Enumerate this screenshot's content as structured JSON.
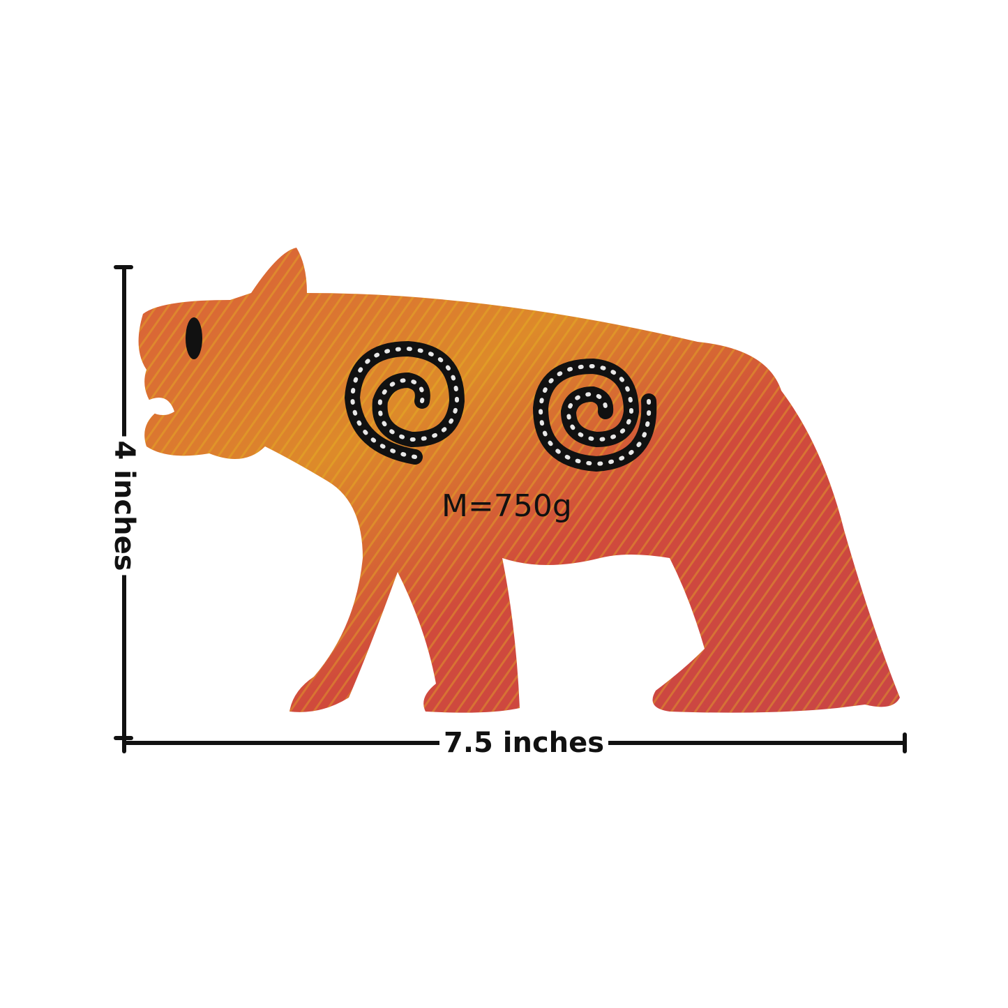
{
  "annotations": {
    "height_label": "4 inches",
    "width_label": "7.5 inches",
    "mass_label": "M=750g"
  },
  "subject": {
    "description_icon": "carved-soapstone-lion-figurine",
    "colors": {
      "base": "#d2503a",
      "highlight": "#e0b020",
      "pattern": "#111111",
      "dots": "#e8e8e8"
    }
  }
}
